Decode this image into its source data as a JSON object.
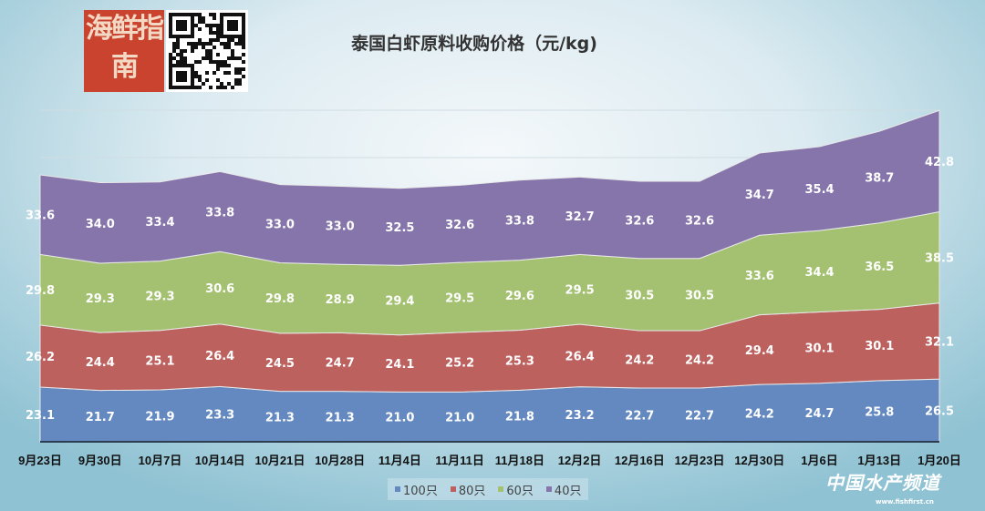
{
  "logo_text": "海鲜指南",
  "watermark": {
    "name": "中国水产频道",
    "url": "www.fishfirst.cn"
  },
  "chart_data": {
    "type": "area",
    "stacked": true,
    "title": "泰国白虾原料收购价格（元/kg)",
    "xlabel": "",
    "ylabel": "",
    "ylim": [
      0,
      140
    ],
    "grid": true,
    "legend_position": "bottom",
    "categories": [
      "9月23日",
      "9月30日",
      "10月7日",
      "10月14日",
      "10月21日",
      "10月28日",
      "11月4日",
      "11月11日",
      "11月18日",
      "12月2日",
      "12月16日",
      "12月23日",
      "12月30日",
      "1月6日",
      "1月13日",
      "1月20日"
    ],
    "series": [
      {
        "name": "100只",
        "color": "#6389c0",
        "values": [
          23.1,
          21.7,
          21.9,
          23.3,
          21.3,
          21.3,
          21.0,
          21.0,
          21.8,
          23.2,
          22.7,
          22.7,
          24.2,
          24.7,
          25.8,
          26.5
        ]
      },
      {
        "name": "80只",
        "color": "#bd615f",
        "values": [
          26.2,
          24.4,
          25.1,
          26.4,
          24.5,
          24.7,
          24.1,
          25.2,
          25.3,
          26.4,
          24.2,
          24.2,
          29.4,
          30.1,
          30.1,
          32.1
        ]
      },
      {
        "name": "60只",
        "color": "#a3c170",
        "values": [
          29.8,
          29.3,
          29.3,
          30.6,
          29.8,
          28.9,
          29.4,
          29.5,
          29.6,
          29.5,
          30.5,
          30.5,
          33.6,
          34.4,
          36.5,
          38.5
        ]
      },
      {
        "name": "40只",
        "color": "#8675ab",
        "values": [
          33.6,
          34.0,
          33.4,
          33.8,
          33.0,
          33.0,
          32.5,
          32.6,
          33.8,
          32.7,
          32.6,
          32.6,
          34.7,
          35.4,
          38.7,
          42.8
        ]
      }
    ]
  }
}
